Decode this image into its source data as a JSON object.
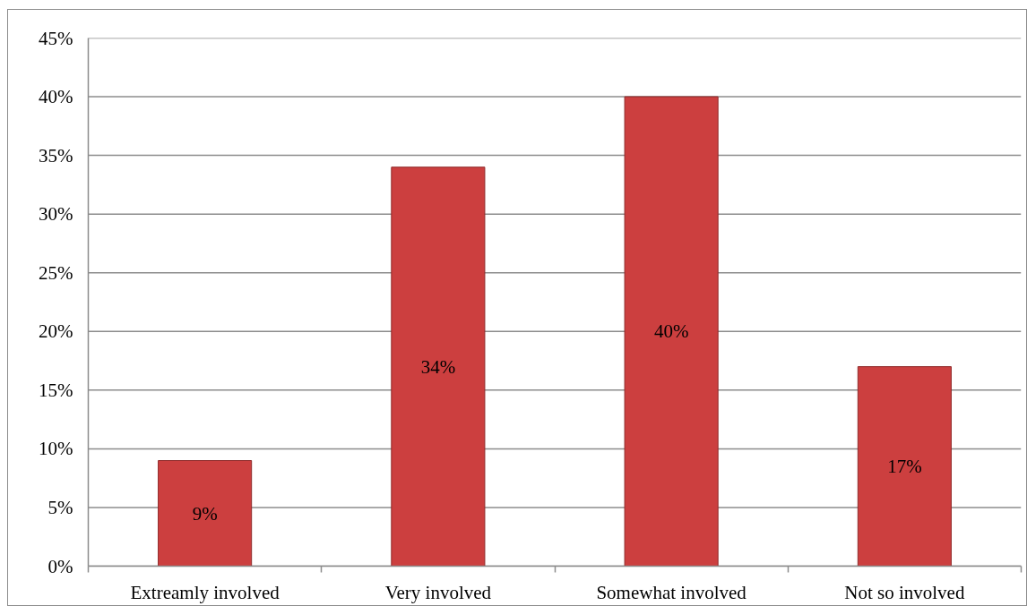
{
  "chart_data": {
    "type": "bar",
    "categories": [
      "Extreamly involved",
      "Very involved",
      "Somewhat involved",
      "Not so involved"
    ],
    "values": [
      9,
      34,
      40,
      17
    ],
    "value_labels": [
      "9%",
      "34%",
      "40%",
      "17%"
    ],
    "color": "#cc3f3f",
    "ylim": [
      0,
      45
    ],
    "yticks": [
      {
        "value": 0,
        "label": "0%"
      },
      {
        "value": 5,
        "label": "5%"
      },
      {
        "value": 10,
        "label": "10%"
      },
      {
        "value": 15,
        "label": "15%"
      },
      {
        "value": 20,
        "label": "20%"
      },
      {
        "value": 25,
        "label": "25%"
      },
      {
        "value": 30,
        "label": "30%"
      },
      {
        "value": 35,
        "label": "35%"
      },
      {
        "value": 40,
        "label": "40%"
      },
      {
        "value": 45,
        "label": "45%"
      }
    ],
    "grid": "y"
  }
}
